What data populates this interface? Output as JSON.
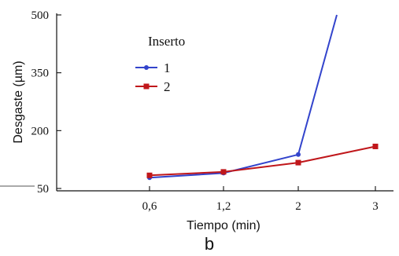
{
  "chart_data": {
    "type": "line",
    "xlabel": "Tiempo (min)",
    "ylabel": "Desgaste (µm)",
    "panel_label": "b",
    "x_ticks": [
      {
        "value": 0.6,
        "label": "0,6"
      },
      {
        "value": 1.2,
        "label": "1,2"
      },
      {
        "value": 2,
        "label": "2"
      },
      {
        "value": 3,
        "label": "3"
      }
    ],
    "y_ticks": [
      {
        "value": 50,
        "label": "50"
      },
      {
        "value": 200,
        "label": "200"
      },
      {
        "value": 350,
        "label": "350"
      },
      {
        "value": 500,
        "label": "500"
      }
    ],
    "xlim": [
      0,
      3.1
    ],
    "ylim": [
      38,
      505
    ],
    "legend_title": "Inserto",
    "series": [
      {
        "name": "1",
        "color": "#3344cc",
        "marker": "dot",
        "points": [
          [
            0.6,
            78
          ],
          [
            1.2,
            90
          ],
          [
            2,
            138
          ],
          [
            2.5,
            500
          ]
        ]
      },
      {
        "name": "2",
        "color": "#c0171b",
        "marker": "square",
        "points": [
          [
            0.6,
            84
          ],
          [
            1.2,
            93
          ],
          [
            2,
            117
          ],
          [
            3,
            159
          ]
        ]
      }
    ],
    "legend_placement": "upper-left inside plot",
    "grid": false
  }
}
